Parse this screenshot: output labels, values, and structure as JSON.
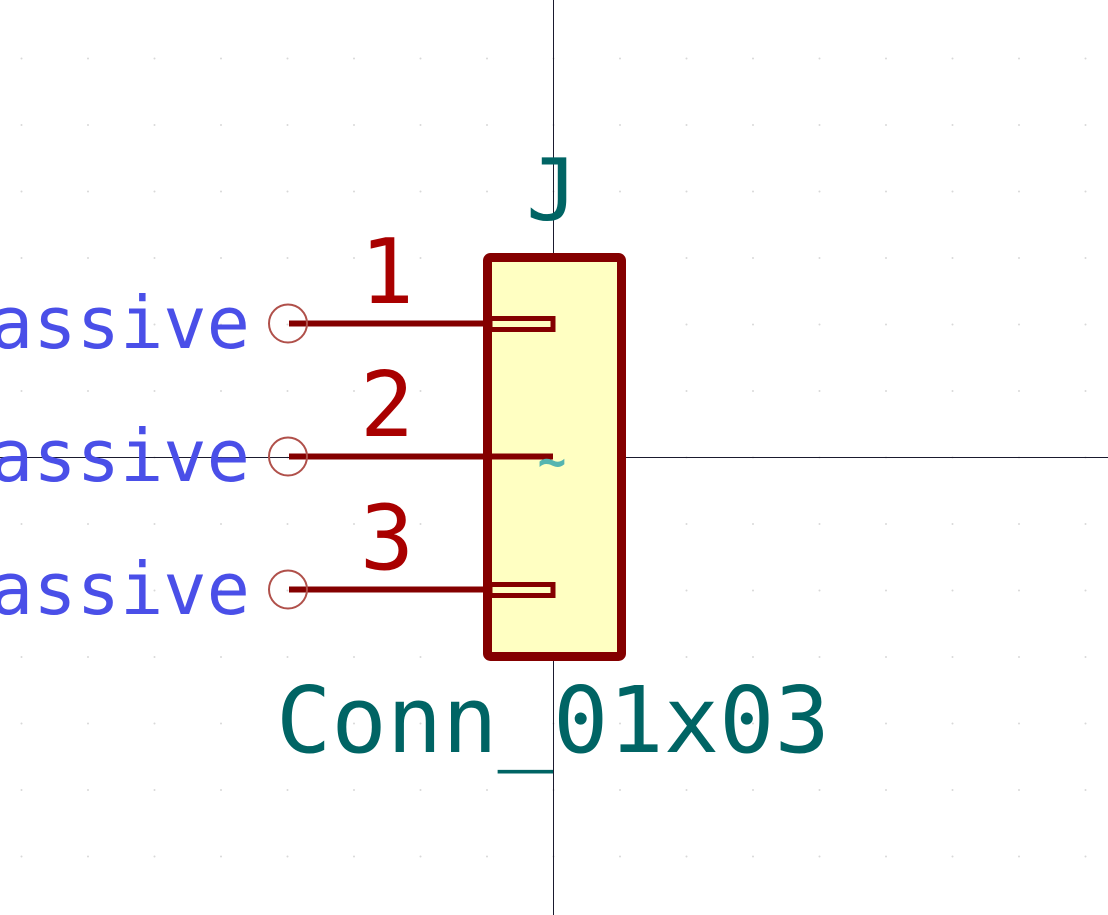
{
  "symbol": {
    "reference": "J",
    "value": "Conn_01x03",
    "pins": [
      {
        "number": "1",
        "electrical_type": "Passive"
      },
      {
        "number": "2",
        "electrical_type": "Passive"
      },
      {
        "number": "3",
        "electrical_type": "Passive"
      }
    ],
    "anchor_marker": "~"
  },
  "colors": {
    "background": "#ffffff",
    "grid_dot": "#d8d8d8",
    "crosshair": "#1a1a2e",
    "body_outline": "#840000",
    "body_fill": "#ffffc2",
    "pin": "#840000",
    "pin_number": "#a90000",
    "pin_type": "#4a4fe8",
    "pin_end_circle": "#b0504a",
    "field_text": "#006464",
    "anchor_marker": "#55b5b0"
  }
}
